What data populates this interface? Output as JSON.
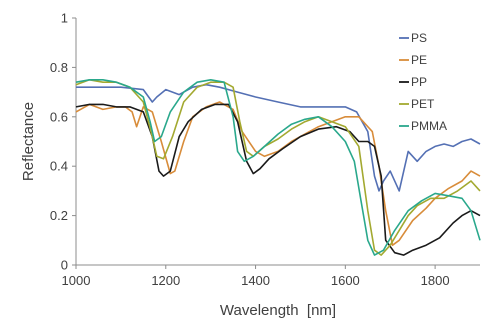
{
  "chart_data": {
    "type": "line",
    "xlabel": "Wavelength  [nm]",
    "ylabel": "Reflectance",
    "xlim": [
      1000,
      1900
    ],
    "ylim": [
      0,
      1
    ],
    "xticks": [
      1000,
      1200,
      1400,
      1600,
      1800
    ],
    "yticks": [
      0,
      0.2,
      0.4,
      0.6,
      0.8,
      1
    ],
    "x_tick_labels": [
      "1000",
      "1200",
      "1400",
      "1600",
      "1800"
    ],
    "y_tick_labels": [
      "0",
      "0.2",
      "0.4",
      "0.6",
      "0.8",
      "1"
    ],
    "grid": false,
    "legend_position": "top-right",
    "series": [
      {
        "name": "PS",
        "color": "#5470b4",
        "points": [
          [
            1000,
            0.72
          ],
          [
            1050,
            0.72
          ],
          [
            1100,
            0.72
          ],
          [
            1150,
            0.71
          ],
          [
            1170,
            0.66
          ],
          [
            1180,
            0.68
          ],
          [
            1200,
            0.71
          ],
          [
            1230,
            0.69
          ],
          [
            1260,
            0.72
          ],
          [
            1290,
            0.73
          ],
          [
            1320,
            0.72
          ],
          [
            1360,
            0.7
          ],
          [
            1400,
            0.68
          ],
          [
            1450,
            0.66
          ],
          [
            1500,
            0.64
          ],
          [
            1550,
            0.64
          ],
          [
            1600,
            0.64
          ],
          [
            1625,
            0.62
          ],
          [
            1650,
            0.54
          ],
          [
            1665,
            0.36
          ],
          [
            1675,
            0.3
          ],
          [
            1685,
            0.34
          ],
          [
            1700,
            0.38
          ],
          [
            1720,
            0.3
          ],
          [
            1740,
            0.46
          ],
          [
            1760,
            0.42
          ],
          [
            1780,
            0.46
          ],
          [
            1800,
            0.48
          ],
          [
            1820,
            0.49
          ],
          [
            1840,
            0.48
          ],
          [
            1860,
            0.5
          ],
          [
            1880,
            0.51
          ],
          [
            1900,
            0.49
          ]
        ]
      },
      {
        "name": "PE",
        "color": "#d88c3a",
        "points": [
          [
            1000,
            0.62
          ],
          [
            1030,
            0.65
          ],
          [
            1060,
            0.63
          ],
          [
            1090,
            0.64
          ],
          [
            1110,
            0.64
          ],
          [
            1125,
            0.62
          ],
          [
            1135,
            0.56
          ],
          [
            1150,
            0.64
          ],
          [
            1170,
            0.62
          ],
          [
            1190,
            0.5
          ],
          [
            1210,
            0.37
          ],
          [
            1220,
            0.38
          ],
          [
            1240,
            0.5
          ],
          [
            1260,
            0.6
          ],
          [
            1290,
            0.64
          ],
          [
            1320,
            0.66
          ],
          [
            1350,
            0.63
          ],
          [
            1370,
            0.54
          ],
          [
            1400,
            0.46
          ],
          [
            1420,
            0.44
          ],
          [
            1450,
            0.46
          ],
          [
            1480,
            0.5
          ],
          [
            1510,
            0.53
          ],
          [
            1540,
            0.56
          ],
          [
            1570,
            0.58
          ],
          [
            1600,
            0.6
          ],
          [
            1630,
            0.6
          ],
          [
            1660,
            0.54
          ],
          [
            1675,
            0.4
          ],
          [
            1690,
            0.22
          ],
          [
            1705,
            0.08
          ],
          [
            1720,
            0.1
          ],
          [
            1750,
            0.18
          ],
          [
            1780,
            0.23
          ],
          [
            1800,
            0.27
          ],
          [
            1830,
            0.31
          ],
          [
            1860,
            0.34
          ],
          [
            1880,
            0.38
          ],
          [
            1900,
            0.36
          ]
        ]
      },
      {
        "name": "PP",
        "color": "#1a1a1a",
        "points": [
          [
            1000,
            0.64
          ],
          [
            1030,
            0.65
          ],
          [
            1060,
            0.65
          ],
          [
            1090,
            0.64
          ],
          [
            1120,
            0.64
          ],
          [
            1150,
            0.62
          ],
          [
            1170,
            0.52
          ],
          [
            1185,
            0.38
          ],
          [
            1195,
            0.36
          ],
          [
            1210,
            0.38
          ],
          [
            1230,
            0.52
          ],
          [
            1250,
            0.58
          ],
          [
            1280,
            0.63
          ],
          [
            1310,
            0.65
          ],
          [
            1340,
            0.65
          ],
          [
            1360,
            0.58
          ],
          [
            1380,
            0.42
          ],
          [
            1395,
            0.37
          ],
          [
            1410,
            0.39
          ],
          [
            1430,
            0.43
          ],
          [
            1460,
            0.47
          ],
          [
            1500,
            0.52
          ],
          [
            1540,
            0.55
          ],
          [
            1580,
            0.56
          ],
          [
            1610,
            0.54
          ],
          [
            1630,
            0.5
          ],
          [
            1650,
            0.5
          ],
          [
            1665,
            0.48
          ],
          [
            1680,
            0.36
          ],
          [
            1690,
            0.1
          ],
          [
            1710,
            0.05
          ],
          [
            1730,
            0.04
          ],
          [
            1750,
            0.06
          ],
          [
            1780,
            0.08
          ],
          [
            1810,
            0.11
          ],
          [
            1840,
            0.17
          ],
          [
            1860,
            0.2
          ],
          [
            1880,
            0.22
          ],
          [
            1900,
            0.2
          ]
        ]
      },
      {
        "name": "PET",
        "color": "#a3a930",
        "points": [
          [
            1000,
            0.73
          ],
          [
            1030,
            0.75
          ],
          [
            1060,
            0.74
          ],
          [
            1090,
            0.74
          ],
          [
            1120,
            0.72
          ],
          [
            1150,
            0.66
          ],
          [
            1170,
            0.52
          ],
          [
            1180,
            0.44
          ],
          [
            1195,
            0.43
          ],
          [
            1215,
            0.52
          ],
          [
            1240,
            0.66
          ],
          [
            1270,
            0.72
          ],
          [
            1300,
            0.74
          ],
          [
            1330,
            0.74
          ],
          [
            1350,
            0.72
          ],
          [
            1365,
            0.58
          ],
          [
            1380,
            0.46
          ],
          [
            1395,
            0.44
          ],
          [
            1420,
            0.48
          ],
          [
            1450,
            0.51
          ],
          [
            1480,
            0.55
          ],
          [
            1510,
            0.58
          ],
          [
            1540,
            0.6
          ],
          [
            1570,
            0.58
          ],
          [
            1600,
            0.56
          ],
          [
            1630,
            0.48
          ],
          [
            1650,
            0.22
          ],
          [
            1665,
            0.06
          ],
          [
            1680,
            0.04
          ],
          [
            1700,
            0.08
          ],
          [
            1720,
            0.14
          ],
          [
            1740,
            0.2
          ],
          [
            1760,
            0.24
          ],
          [
            1790,
            0.27
          ],
          [
            1820,
            0.27
          ],
          [
            1850,
            0.3
          ],
          [
            1880,
            0.34
          ],
          [
            1900,
            0.3
          ]
        ]
      },
      {
        "name": "PMMA",
        "color": "#2aa88c",
        "points": [
          [
            1000,
            0.74
          ],
          [
            1030,
            0.75
          ],
          [
            1060,
            0.75
          ],
          [
            1090,
            0.74
          ],
          [
            1120,
            0.72
          ],
          [
            1150,
            0.68
          ],
          [
            1165,
            0.58
          ],
          [
            1175,
            0.5
          ],
          [
            1190,
            0.52
          ],
          [
            1210,
            0.62
          ],
          [
            1240,
            0.7
          ],
          [
            1270,
            0.74
          ],
          [
            1300,
            0.75
          ],
          [
            1330,
            0.74
          ],
          [
            1350,
            0.6
          ],
          [
            1360,
            0.46
          ],
          [
            1375,
            0.42
          ],
          [
            1395,
            0.44
          ],
          [
            1420,
            0.48
          ],
          [
            1450,
            0.53
          ],
          [
            1480,
            0.57
          ],
          [
            1510,
            0.59
          ],
          [
            1540,
            0.6
          ],
          [
            1570,
            0.56
          ],
          [
            1600,
            0.5
          ],
          [
            1620,
            0.42
          ],
          [
            1635,
            0.26
          ],
          [
            1650,
            0.1
          ],
          [
            1665,
            0.04
          ],
          [
            1685,
            0.06
          ],
          [
            1710,
            0.14
          ],
          [
            1740,
            0.22
          ],
          [
            1770,
            0.26
          ],
          [
            1800,
            0.29
          ],
          [
            1830,
            0.28
          ],
          [
            1860,
            0.27
          ],
          [
            1880,
            0.22
          ],
          [
            1900,
            0.1
          ]
        ]
      }
    ]
  }
}
